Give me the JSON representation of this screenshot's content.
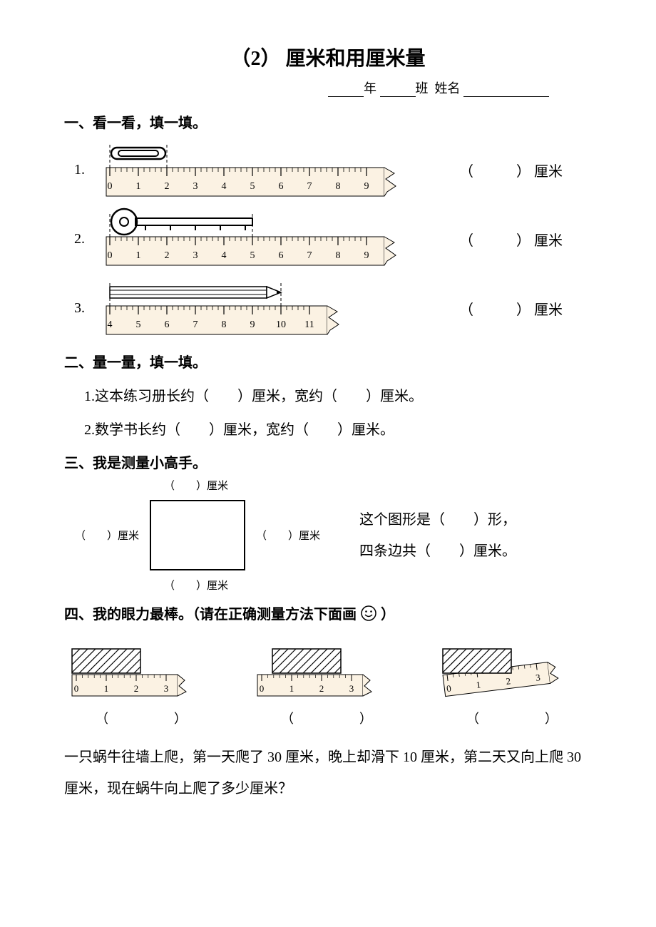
{
  "title": "（2） 厘米和用厘米量",
  "header": {
    "year": "年",
    "class": "班",
    "name_label": "姓名"
  },
  "section1": {
    "head": "一、看一看，填一填。",
    "items": [
      {
        "num": "1.",
        "answer_prefix": "（",
        "answer_suffix": "） 厘米",
        "ruler_labels": [
          "0",
          "1",
          "2",
          "3",
          "4",
          "5",
          "6",
          "7",
          "8",
          "9"
        ],
        "ruler_start": 0,
        "object_start": 0,
        "object_end": 2,
        "object": "clip"
      },
      {
        "num": "2.",
        "answer_prefix": "（",
        "answer_suffix": "） 厘米",
        "ruler_labels": [
          "0",
          "1",
          "2",
          "3",
          "4",
          "5",
          "6",
          "7",
          "8",
          "9"
        ],
        "ruler_start": 0,
        "object_start": 0,
        "object_end": 5,
        "object": "key"
      },
      {
        "num": "3.",
        "answer_prefix": "（",
        "answer_suffix": "） 厘米",
        "ruler_labels": [
          "4",
          "5",
          "6",
          "7",
          "8",
          "9",
          "10",
          "11"
        ],
        "ruler_start": 4,
        "object_start": 4,
        "object_end": 10,
        "object": "pencil"
      }
    ]
  },
  "section2": {
    "head": "二、量一量，填一填。",
    "q1": "1.这本练习册长约（　　）厘米，宽约（　　）厘米。",
    "q2": "2.数学书长约（　　）厘米，宽约（　　）厘米。"
  },
  "section3": {
    "head": "三、我是测量小高手。",
    "label_cm": "（　　）厘米",
    "right_text1": "这个图形是（　　）形，",
    "right_text2": "四条边共（　　）厘米。"
  },
  "section4": {
    "head_a": "四、我的眼力最棒。（请在正确测量方法下面画 ",
    "head_b": "）",
    "paren": "（　　　　）",
    "rulers": [
      {
        "labels": [
          "0",
          "1",
          "2",
          "3"
        ],
        "box_offset": 0,
        "box_cm": 2,
        "tilt": 0
      },
      {
        "labels": [
          "0",
          "1",
          "2",
          "3"
        ],
        "box_offset": 0.5,
        "box_cm": 2,
        "tilt": 0
      },
      {
        "labels": [
          "0",
          "1",
          "2",
          "3"
        ],
        "box_offset": 0,
        "box_cm": 2,
        "tilt": -7
      }
    ]
  },
  "word_problem": "一只蜗牛往墙上爬，第一天爬了 30 厘米，晚上却滑下 10 厘米，第二天又向上爬 30 厘米，现在蜗牛向上爬了多少厘米？",
  "colors": {
    "stroke": "#000000",
    "ruler_fill": "#fbf2e3",
    "hatch": "#000000"
  }
}
